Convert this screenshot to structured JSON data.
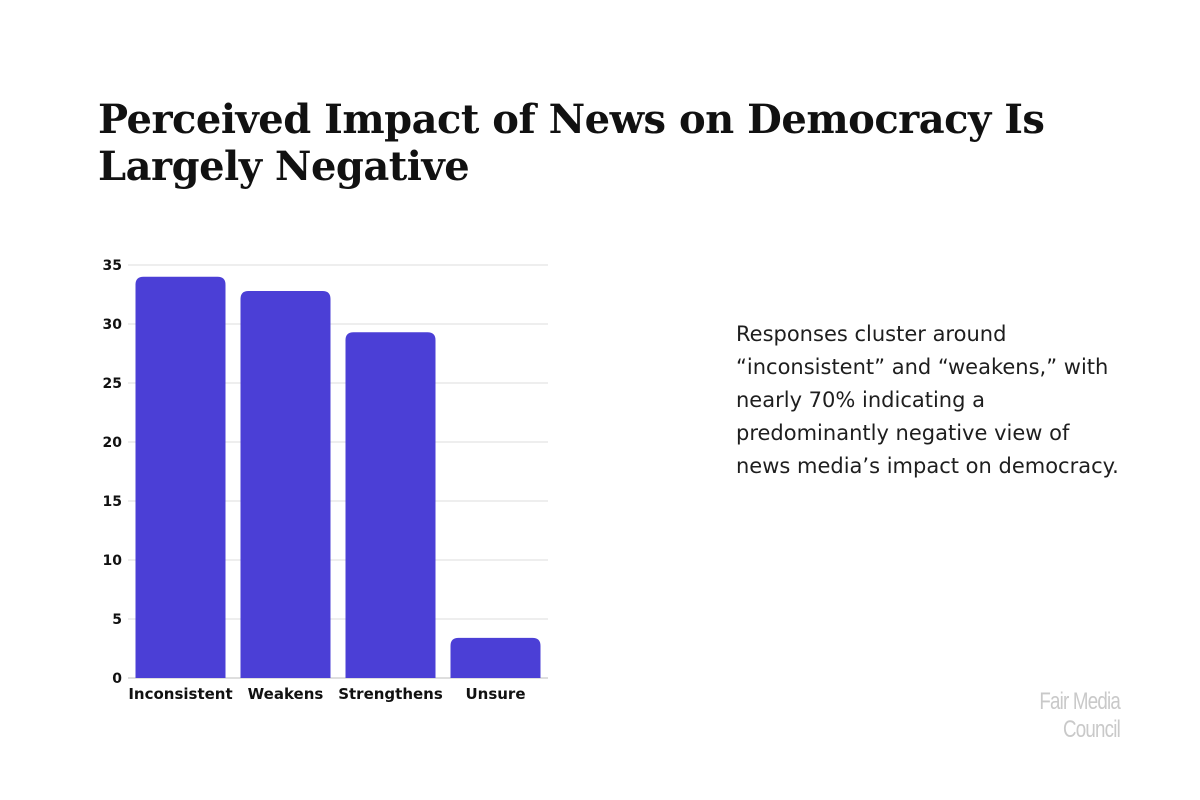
{
  "header": {
    "title": "Perceived Impact of News on Democracy Is Largely Negative"
  },
  "description": "Responses cluster around “inconsistent” and “weakens,” with nearly 70% indicating a predominantly negative view of news media’s impact on democracy.",
  "footer": {
    "brand": "Fair Media Council"
  },
  "chart_data": {
    "type": "bar",
    "title": "Perceived Impact of News on Democracy Is Largely Negative",
    "categories": [
      "Inconsistent",
      "Weakens",
      "Strengthens",
      "Unsure"
    ],
    "values": [
      34,
      32.8,
      29.3,
      3.4
    ],
    "xlabel": "",
    "ylabel": "",
    "ylim": [
      0,
      35
    ],
    "yticks": [
      0,
      5,
      10,
      15,
      20,
      25,
      30,
      35
    ],
    "grid": true,
    "legend": "none",
    "bar_color": "#4B3FD6"
  },
  "colors": {
    "bar": "#4B3FD6",
    "title": "#111111",
    "body_text": "#1e1e1e",
    "brand": "#c9c9c9",
    "grid": "#dddddd"
  }
}
